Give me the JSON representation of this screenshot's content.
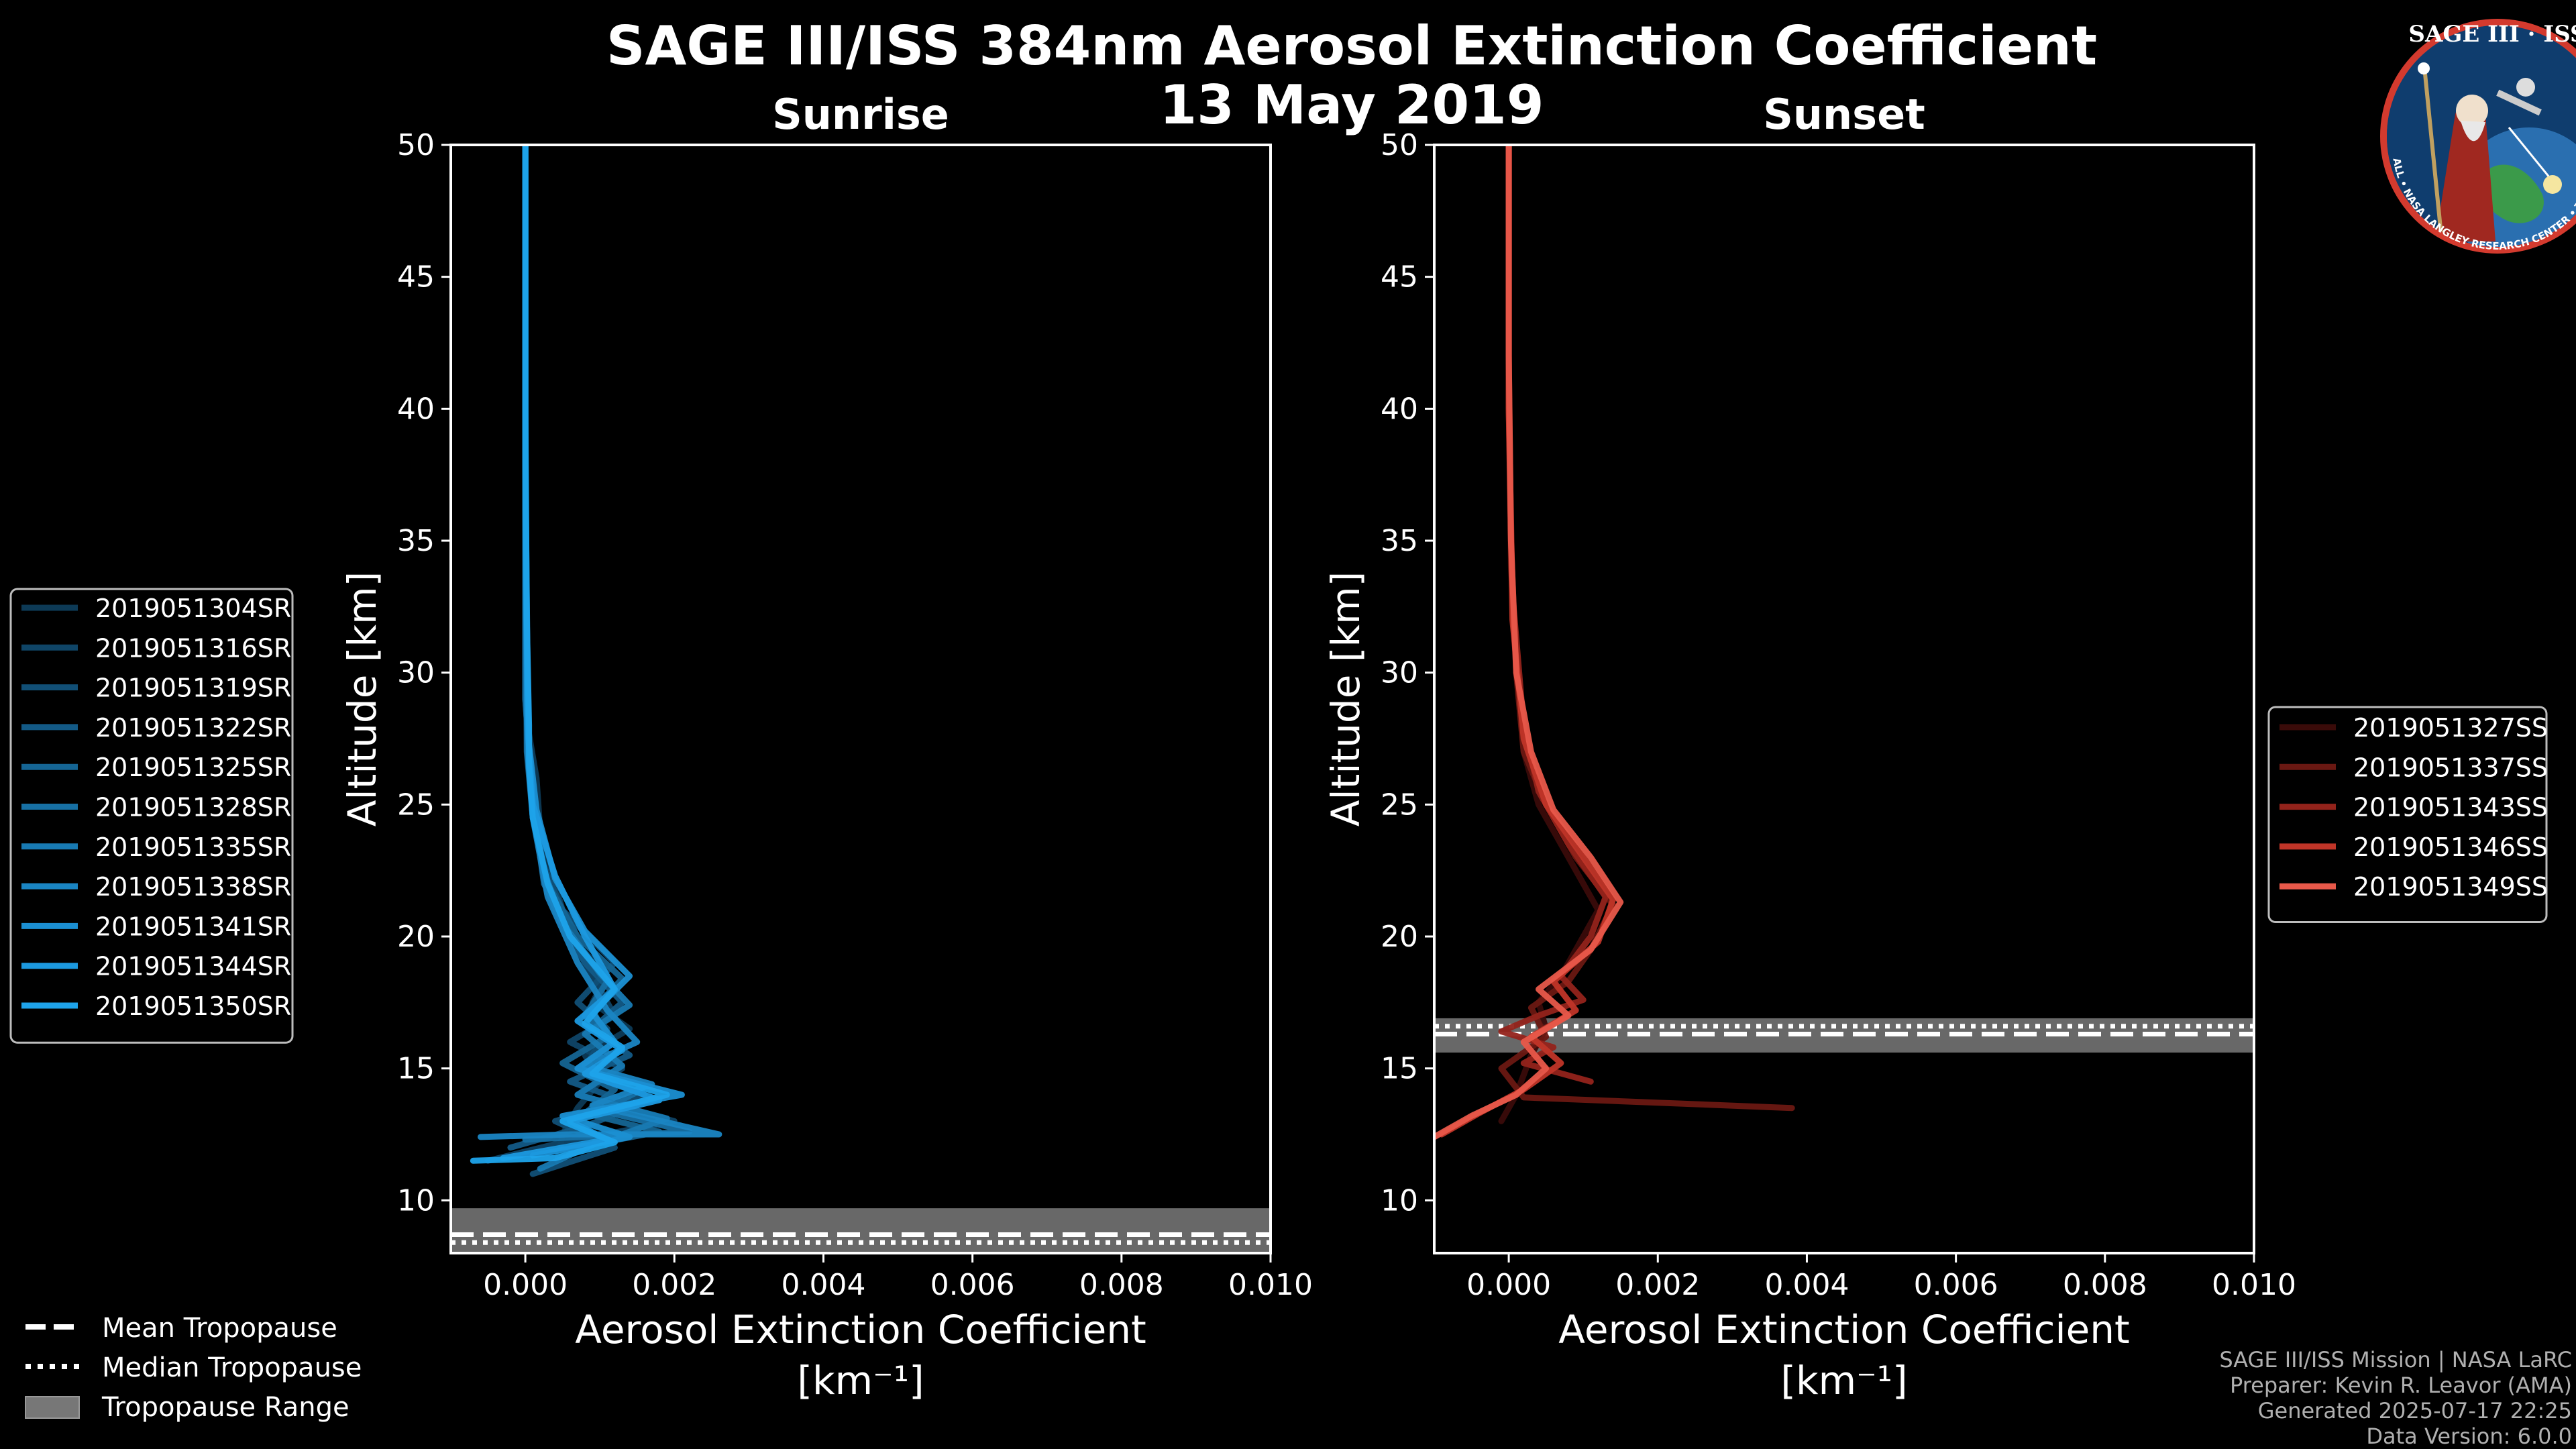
{
  "title": "SAGE III/ISS 384nm Aerosol Extinction Coefficient",
  "subtitle": "13 May 2019",
  "logo": {
    "text": "SAGE III · ISS",
    "ring_text": "BALL • NASA LANGLEY RESEARCH CENTER • TAS-I • ESA"
  },
  "footer": {
    "line1": "SAGE III/ISS Mission | NASA LaRC",
    "line2": "Preparer: Kevin R. Leavor (AMA)",
    "line3": "Generated 2025-07-17 22:25",
    "line4": "Data Version: 6.0.0"
  },
  "tropo_legend": [
    {
      "label": "Mean Tropopause",
      "style": "dashed"
    },
    {
      "label": "Median Tropopause",
      "style": "dotted"
    },
    {
      "label": "Tropopause Range",
      "style": "patch"
    }
  ],
  "chart_data": [
    {
      "type": "line",
      "title": "Sunrise",
      "xlabel": "Aerosol Extinction Coefficient",
      "xunit": "[km⁻¹]",
      "ylabel": "Altitude [km]",
      "xlim": [
        -0.001,
        0.01
      ],
      "ylim": [
        8,
        50
      ],
      "xticks": [
        0.0,
        0.002,
        0.004,
        0.006,
        0.008,
        0.01
      ],
      "xtick_labels": [
        "0.000",
        "0.002",
        "0.004",
        "0.006",
        "0.008",
        "0.010"
      ],
      "yticks": [
        10,
        15,
        20,
        25,
        30,
        35,
        40,
        45,
        50
      ],
      "ytick_labels": [
        "10",
        "15",
        "20",
        "25",
        "30",
        "35",
        "40",
        "45",
        "50"
      ],
      "tropopause": {
        "mean": 8.7,
        "median": 8.4,
        "range": [
          8.0,
          9.7
        ]
      },
      "colors": [
        "#0d3a56",
        "#0f4567",
        "#114f76",
        "#135a86",
        "#156594",
        "#1770a4",
        "#187ab3",
        "#1a85c3",
        "#1b8fd2",
        "#1c99df",
        "#1ea3ea"
      ],
      "series": [
        {
          "name": "2019051304SR",
          "x": [
            0.00043,
            0.0005,
            0.0007,
            0.001,
            0.0008,
            0.0014,
            0.0009,
            0.0011,
            0.0006,
            0.0004,
            0.0002,
            0.00015,
            3e-05,
            0.0,
            0.0,
            0.0,
            0.0
          ],
          "y": [
            11.5,
            12.5,
            13.5,
            14.5,
            15.5,
            16.5,
            17.5,
            18.5,
            20,
            22,
            24,
            26,
            28,
            32,
            38,
            44,
            50
          ]
        },
        {
          "name": "2019051316SR",
          "x": [
            -0.0005,
            0.0005,
            0.002,
            0.0007,
            0.0013,
            0.0006,
            0.0012,
            0.0009,
            0.0006,
            0.0003,
            0.00015,
            5e-05,
            0.0,
            0.0,
            0.0,
            0.0
          ],
          "y": [
            11.5,
            12.2,
            13.0,
            14.0,
            15.0,
            16.0,
            17.0,
            18.5,
            20,
            22,
            24,
            27,
            30,
            35,
            42,
            50
          ]
        },
        {
          "name": "2019051319SR",
          "x": [
            0.0001,
            0.0012,
            0.0004,
            0.0016,
            0.0008,
            0.0011,
            0.0007,
            0.0012,
            0.0005,
            0.0002,
            0.0001,
            3e-05,
            0.0,
            0.0,
            0.0
          ],
          "y": [
            11.0,
            12.0,
            13.0,
            14.0,
            15.0,
            16.5,
            17.5,
            19.0,
            21,
            23,
            25,
            28,
            33,
            40,
            50
          ]
        },
        {
          "name": "2019051322SR",
          "x": [
            -0.0002,
            0.0008,
            0.0015,
            0.0006,
            0.0014,
            0.0009,
            0.0013,
            0.0008,
            0.0004,
            0.0002,
            8e-05,
            0.0,
            0.0,
            0.0
          ],
          "y": [
            12.0,
            12.8,
            13.6,
            14.5,
            15.5,
            16.5,
            17.5,
            19.0,
            21,
            23,
            25.5,
            29,
            38,
            50
          ]
        },
        {
          "name": "2019051325SR",
          "x": [
            0.0003,
            0.0018,
            0.0008,
            0.0012,
            0.0005,
            0.0011,
            0.0009,
            0.0013,
            0.0007,
            0.0003,
            0.0001,
            2e-05,
            0.0,
            0.0
          ],
          "y": [
            11.8,
            12.6,
            13.3,
            14.2,
            15.2,
            16.2,
            17.2,
            18.4,
            20,
            22,
            24.5,
            27,
            36,
            50
          ]
        },
        {
          "name": "2019051328SR",
          "x": [
            0.0,
            0.0022,
            0.001,
            0.0015,
            0.0007,
            0.0012,
            0.0008,
            0.0011,
            0.0006,
            0.00025,
            0.0001,
            0.0,
            0.0,
            0.0
          ],
          "y": [
            12.3,
            12.6,
            13.4,
            14.1,
            15.0,
            16.0,
            17.0,
            18.3,
            20,
            22,
            25,
            29,
            40,
            50
          ]
        },
        {
          "name": "2019051335SR",
          "x": [
            0.0002,
            0.0009,
            0.0019,
            0.0007,
            0.0013,
            0.0008,
            0.0014,
            0.001,
            0.0005,
            0.00025,
            0.0001,
            3e-05,
            0.0,
            0.0
          ],
          "y": [
            11.2,
            12.1,
            13.1,
            14.0,
            15.1,
            16.3,
            17.4,
            18.6,
            20.5,
            22.5,
            25,
            28,
            37,
            50
          ]
        },
        {
          "name": "2019051338SR",
          "x": [
            -0.0006,
            0.0006,
            0.0026,
            0.0009,
            0.0017,
            0.0008,
            0.0015,
            0.0011,
            0.0007,
            0.0003,
            0.0001,
            3e-05,
            0.0,
            0.0
          ],
          "y": [
            12.4,
            12.5,
            12.5,
            13.6,
            14.4,
            15.1,
            16.0,
            17.2,
            19.0,
            21.5,
            24.5,
            27,
            36,
            50
          ]
        },
        {
          "name": "2019051341SR",
          "x": [
            0.0001,
            0.0014,
            0.0005,
            0.0021,
            0.0007,
            0.0012,
            0.0009,
            0.0014,
            0.0008,
            0.0004,
            0.00015,
            4e-05,
            0.0,
            0.0
          ],
          "y": [
            11.7,
            12.4,
            13.2,
            14.0,
            15.0,
            16.0,
            17.1,
            18.5,
            20.2,
            22.2,
            24.8,
            27.5,
            38,
            50
          ]
        },
        {
          "name": "2019051344SR",
          "x": [
            -0.0003,
            0.0011,
            0.0006,
            0.0018,
            0.0008,
            0.0013,
            0.0007,
            0.0012,
            0.0008,
            0.0004,
            0.0001,
            3e-05,
            0.0,
            0.0
          ],
          "y": [
            11.6,
            12.3,
            13.0,
            13.8,
            14.8,
            15.7,
            16.8,
            18.0,
            20.0,
            22.3,
            25,
            28,
            38,
            50
          ]
        },
        {
          "name": "2019051350SR",
          "x": [
            -0.0007,
            0.0004,
            0.0012,
            0.0005,
            0.0019,
            0.0009,
            0.0013,
            0.0008,
            0.0012,
            0.0006,
            0.0003,
            0.0001,
            5e-05,
            5e-05,
            2e-05,
            0.0,
            0.0
          ],
          "y": [
            11.5,
            11.6,
            12.2,
            13.0,
            14.0,
            14.8,
            15.8,
            16.7,
            18.0,
            20.0,
            22.0,
            24.5,
            26.5,
            28,
            32,
            40,
            50
          ]
        }
      ]
    },
    {
      "type": "line",
      "title": "Sunset",
      "xlabel": "Aerosol Extinction Coefficient",
      "xunit": "[km⁻¹]",
      "ylabel": "Altitude [km]",
      "xlim": [
        -0.001,
        0.01
      ],
      "ylim": [
        8,
        50
      ],
      "xticks": [
        0.0,
        0.002,
        0.004,
        0.006,
        0.008,
        0.01
      ],
      "xtick_labels": [
        "0.000",
        "0.002",
        "0.004",
        "0.006",
        "0.008",
        "0.010"
      ],
      "yticks": [
        10,
        15,
        20,
        25,
        30,
        35,
        40,
        45,
        50
      ],
      "ytick_labels": [
        "10",
        "15",
        "20",
        "25",
        "30",
        "35",
        "40",
        "45",
        "50"
      ],
      "tropopause": {
        "mean": 16.3,
        "median": 16.6,
        "range": [
          15.6,
          16.9
        ]
      },
      "colors": [
        "#3a0b09",
        "#6a1812",
        "#93231b",
        "#c03528",
        "#e8594a"
      ],
      "series": [
        {
          "name": "2019051327SS",
          "x": [
            -0.0001,
            0.0001,
            0.0003,
            0.0005,
            0.0004,
            0.0007,
            0.0009,
            0.0012,
            0.0008,
            0.0004,
            0.0002,
            0.0001,
            3e-05,
            0.0,
            0.0
          ],
          "y": [
            13.0,
            14.0,
            15.5,
            16.5,
            17.5,
            18.5,
            19.5,
            21.0,
            23.0,
            25.0,
            27,
            30,
            34,
            40,
            50
          ]
        },
        {
          "name": "2019051337SS",
          "x": [
            0.0038,
            0.0002,
            -0.0001,
            0.0005,
            0.0003,
            0.0008,
            0.0011,
            0.0014,
            0.0009,
            0.0005,
            0.0002,
            0.0001,
            3e-05,
            0.0,
            0.0
          ],
          "y": [
            13.5,
            13.9,
            15.0,
            16.2,
            17.3,
            18.3,
            19.5,
            21.2,
            23.0,
            25.0,
            27,
            30,
            35,
            42,
            50
          ]
        },
        {
          "name": "2019051343SS",
          "x": [
            0.0011,
            0.0002,
            0.0006,
            -0.0001,
            0.0004,
            0.001,
            0.0007,
            0.0011,
            0.0013,
            0.0008,
            0.0004,
            0.0002,
            5e-05,
            0.0,
            0.0
          ],
          "y": [
            14.5,
            15.2,
            15.8,
            16.4,
            17.0,
            17.6,
            18.5,
            20.0,
            21.5,
            23.5,
            25.5,
            28,
            33,
            40,
            50
          ]
        },
        {
          "name": "2019051346SS",
          "x": [
            -0.0009,
            -0.0004,
            0.0002,
            0.0007,
            0.0003,
            0.0009,
            0.0006,
            0.0012,
            0.0014,
            0.001,
            0.0005,
            0.0002,
            5e-05,
            0.0,
            0.0
          ],
          "y": [
            12.5,
            13.3,
            14.2,
            15.2,
            16.2,
            17.2,
            18.3,
            19.8,
            21.4,
            23.0,
            25.0,
            27.5,
            32,
            40,
            50
          ]
        },
        {
          "name": "2019051349SS",
          "x": [
            -0.001,
            -0.0005,
            0.0001,
            0.0005,
            0.0002,
            0.0008,
            0.0004,
            0.0011,
            0.0015,
            0.0011,
            0.0006,
            0.0003,
            0.0001,
            3e-05,
            0.0,
            0.0
          ],
          "y": [
            12.4,
            13.2,
            14.0,
            15.0,
            16.0,
            17.0,
            18.0,
            19.5,
            21.3,
            23.0,
            24.8,
            27.0,
            30,
            35,
            42,
            50
          ]
        }
      ]
    }
  ]
}
